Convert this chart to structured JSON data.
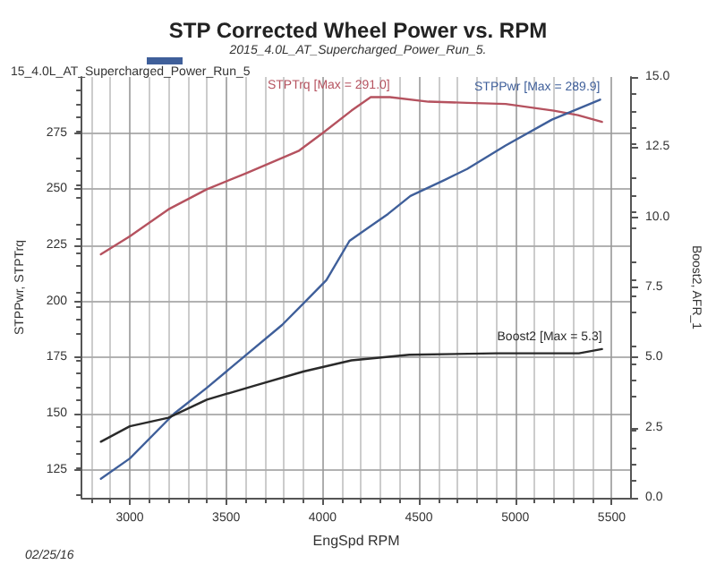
{
  "chart_data": {
    "type": "line",
    "title": "STP Corrected Wheel Power vs. RPM",
    "subtitle": "2015_4.0L_AT_Supercharged_Power_Run_5.",
    "legend_title": "15_4.0L_AT_Supercharged_Power_Run_5",
    "xlabel": "EngSpd RPM",
    "ylabel": "STPPwr, STPTrq",
    "y2label": "Boost2, AFR_1",
    "annotations": [
      "02/25/16"
    ],
    "xlim": [
      2750,
      5600
    ],
    "xticks": [
      3000,
      3500,
      4000,
      4500,
      5000,
      5500
    ],
    "ylim": [
      112.5,
      300
    ],
    "yticks": [
      125,
      150,
      175,
      200,
      225,
      250,
      275
    ],
    "y2lim": [
      0,
      15
    ],
    "y2ticks": [
      {
        "value": 0,
        "label": "0.0"
      },
      2.5,
      {
        "value": 5,
        "label": "5.0"
      },
      7.5,
      {
        "value": 10,
        "label": "10.0"
      },
      12.5,
      {
        "value": 15,
        "label": "15.0"
      }
    ],
    "grid": true,
    "marker": "none",
    "line_style": "solid",
    "series": [
      {
        "name": "STPTrq [Max = 291.0]",
        "color": "#b5525f",
        "x": [
          2850,
          3000,
          3200,
          3400,
          3600,
          3875,
          4000,
          4150,
          4250,
          4350,
          4550,
          4750,
          4950,
          5200,
          5325,
          5450
        ],
        "values": [
          221,
          229,
          241,
          250,
          257,
          267,
          275,
          285,
          291,
          291,
          289,
          288.5,
          288,
          285,
          283,
          280
        ]
      },
      {
        "name": "STPPwr [Max = 289.9]",
        "color": "#3f5f9a",
        "x": [
          2850,
          3000,
          3230,
          3400,
          3615,
          3790,
          3900,
          4020,
          4140,
          4340,
          4456,
          4630,
          4750,
          4950,
          5190,
          5440
        ],
        "values": [
          121,
          130,
          150,
          161.5,
          177,
          189.5,
          199,
          209.5,
          227,
          239,
          247,
          254,
          259,
          269.5,
          281,
          289.9
        ]
      },
      {
        "name": "Boost2 [Max = 5.3]",
        "color": "#2a2a2a",
        "axis": "y2",
        "x": [
          2850,
          3000,
          3200,
          3400,
          3650,
          3900,
          4150,
          4450,
          4900,
          5330,
          5450
        ],
        "values": [
          2.0,
          2.55,
          2.85,
          3.5,
          4.0,
          4.5,
          4.9,
          5.1,
          5.15,
          5.15,
          5.3
        ]
      }
    ]
  }
}
